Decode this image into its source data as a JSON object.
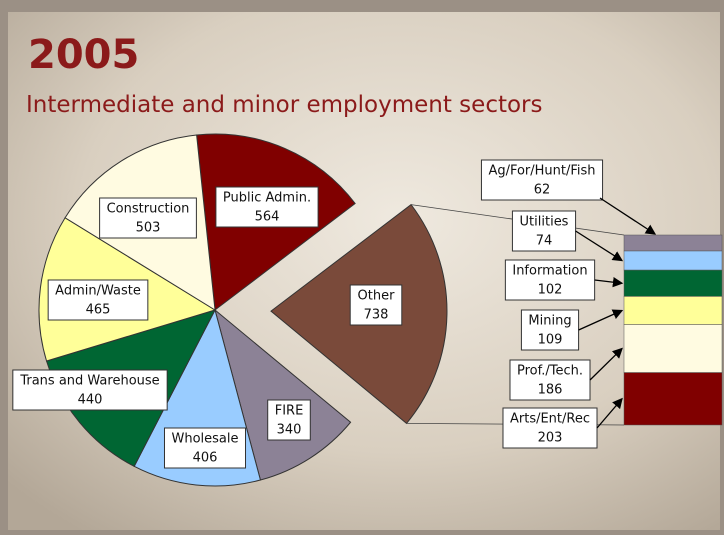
{
  "chart_data": [
    {
      "type": "pie",
      "title": "2005",
      "subtitle": "Intermediate and minor employment sectors",
      "categories": [
        "Public Admin.",
        "Other",
        "FIRE",
        "Wholesale",
        "Trans and Warehouse",
        "Admin/Waste",
        "Construction"
      ],
      "values": [
        564,
        738,
        340,
        406,
        440,
        465,
        503
      ],
      "colors": [
        "#800000",
        "#7a4a3a",
        "#8c8296",
        "#99ccff",
        "#006633",
        "#ffff99",
        "#fffbe1"
      ]
    },
    {
      "type": "bar",
      "categories": [
        "Ag/For/Hunt/Fish",
        "Utilities",
        "Information",
        "Mining",
        "Prof./Tech.",
        "Arts/Ent/Rec"
      ],
      "values": [
        62,
        74,
        102,
        109,
        186,
        203
      ],
      "colors": [
        "#8c8296",
        "#99ccff",
        "#006633",
        "#ffff99",
        "#fffbe1",
        "#800000"
      ]
    }
  ]
}
